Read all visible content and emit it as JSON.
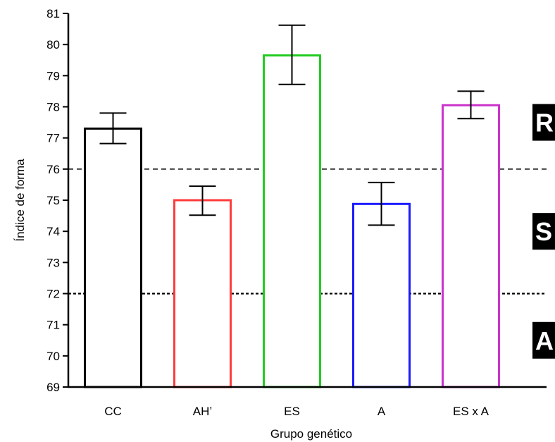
{
  "chart_data": {
    "type": "bar",
    "title": "",
    "xlabel": "Grupo genético",
    "ylabel": "Índice de forma",
    "ylim": [
      69,
      81
    ],
    "yticks": [
      69,
      70,
      71,
      72,
      73,
      74,
      75,
      76,
      77,
      78,
      79,
      80,
      81
    ],
    "grid": false,
    "categories": [
      "CC",
      "AH’",
      "ES",
      "A",
      "ES x A"
    ],
    "values": [
      77.3,
      75.0,
      79.65,
      74.88,
      78.05
    ],
    "error_low": [
      76.82,
      74.52,
      78.72,
      74.2,
      77.62
    ],
    "error_high": [
      77.8,
      75.45,
      80.62,
      75.57,
      78.5
    ],
    "bar_colors": [
      "#000000",
      "#ff3b3b",
      "#22cc22",
      "#1a1aff",
      "#cc33cc"
    ],
    "reference_lines": [
      {
        "y": 76,
        "style": "dashed"
      },
      {
        "y": 72,
        "style": "dotted"
      }
    ],
    "band_labels": [
      {
        "text": "R",
        "y": 77.5
      },
      {
        "text": "S",
        "y": 74.0
      },
      {
        "text": "A",
        "y": 70.5
      }
    ]
  }
}
